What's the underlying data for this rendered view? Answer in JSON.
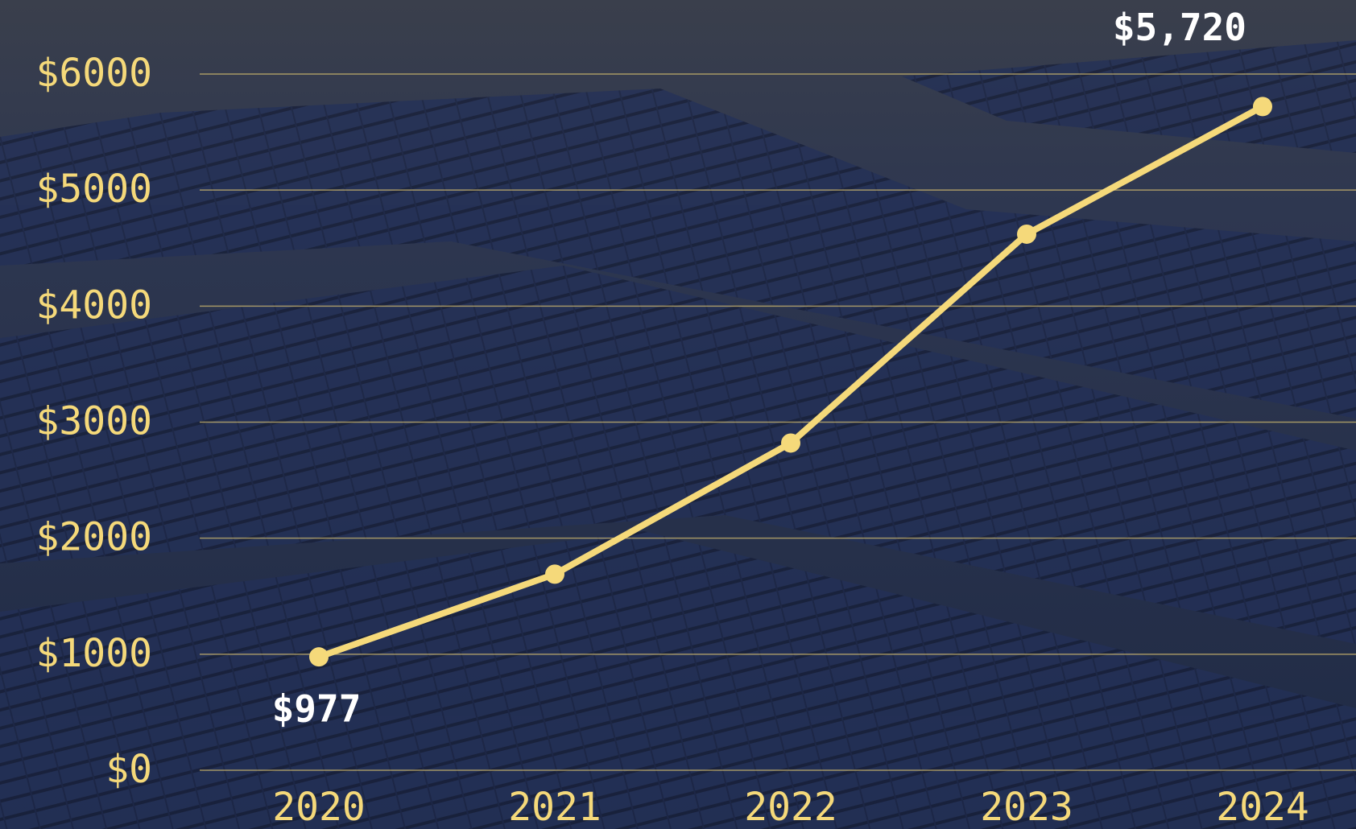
{
  "chart_data": {
    "type": "line",
    "categories": [
      "2020",
      "2021",
      "2022",
      "2023",
      "2024"
    ],
    "values": [
      977,
      1690,
      2820,
      4620,
      5720
    ],
    "value_labels": [
      "$977",
      null,
      null,
      null,
      "$5,720"
    ],
    "color": "#f5d97a",
    "ylim": [
      0,
      6000
    ],
    "yticks": [
      {
        "value": 0,
        "label": "$0"
      },
      {
        "value": 1000,
        "label": "$1000"
      },
      {
        "value": 2000,
        "label": "$2000"
      },
      {
        "value": 3000,
        "label": "$3000"
      },
      {
        "value": 4000,
        "label": "$4000"
      },
      {
        "value": 5000,
        "label": "$5000"
      },
      {
        "value": 6000,
        "label": "$6000"
      }
    ],
    "grid": true
  }
}
